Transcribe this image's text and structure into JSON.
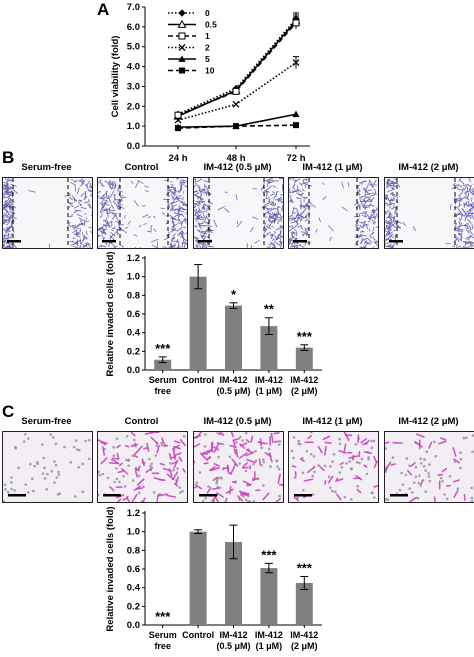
{
  "panels": {
    "a": "A",
    "b": "B",
    "c": "C"
  },
  "panel_b": {
    "images": [
      "Serum-free",
      "Control",
      "IM-412 (0.5 μM)",
      "IM-412 (1 μM)",
      "IM-412 (2 μM)"
    ]
  },
  "panel_c": {
    "images": [
      "Serum-free",
      "Control",
      "IM-412 (0.5 μM)",
      "IM-412 (1 μM)",
      "IM-412 (2 μM)"
    ]
  },
  "colors": {
    "bar": "#808080",
    "wound_cells": "#5b5ba8",
    "transwell_cells": "#c93bbd",
    "transwell_bg": "#f2eef3"
  },
  "chart_data": [
    {
      "type": "line",
      "title": "",
      "xlabel": "",
      "ylabel": "Cell viability (fold)",
      "categories": [
        "24 h",
        "48 h",
        "72 h"
      ],
      "ylim": [
        0,
        7
      ],
      "yticks": [
        "0.0",
        "1.0",
        "2.0",
        "3.0",
        "4.0",
        "5.0",
        "6.0",
        "7.0"
      ],
      "legend_position": "top-left",
      "series": [
        {
          "name": "0",
          "values": [
            1.6,
            2.9,
            6.4
          ],
          "marker": "diamond",
          "dash": "dotted"
        },
        {
          "name": "0.5",
          "values": [
            1.5,
            2.8,
            6.3
          ],
          "marker": "triangle-open",
          "dash": "solid"
        },
        {
          "name": "1",
          "values": [
            1.55,
            2.75,
            6.2
          ],
          "marker": "square-open",
          "dash": "dashed"
        },
        {
          "name": "2",
          "values": [
            1.3,
            2.1,
            4.2
          ],
          "marker": "x",
          "dash": "dotted"
        },
        {
          "name": "5",
          "values": [
            0.95,
            1.0,
            1.6
          ],
          "marker": "triangle",
          "dash": "solid"
        },
        {
          "name": "10",
          "values": [
            0.9,
            1.0,
            1.05
          ],
          "marker": "square",
          "dash": "dashed"
        }
      ]
    },
    {
      "type": "bar",
      "ylabel": "Relative invaded cells (fold)",
      "categories": [
        [
          "Serum",
          "free"
        ],
        [
          "Control"
        ],
        [
          "IM-412",
          "(0.5 μM)"
        ],
        [
          "IM-412",
          "(1 μM)"
        ],
        [
          "IM-412",
          "(2 μM)"
        ]
      ],
      "values": [
        0.11,
        1.0,
        0.69,
        0.47,
        0.24
      ],
      "errors": [
        0.03,
        0.13,
        0.03,
        0.09,
        0.03
      ],
      "significance": [
        "***",
        "",
        "*",
        "**",
        "***"
      ],
      "ylim": [
        0,
        1.2
      ],
      "yticks": [
        "0.0",
        "0.2",
        "0.4",
        "0.6",
        "0.8",
        "1.0",
        "1.2"
      ]
    },
    {
      "type": "bar",
      "ylabel": "Relative invaded cells (fold)",
      "categories": [
        [
          "Serum",
          "free"
        ],
        [
          "Control"
        ],
        [
          "IM-412",
          "(0.5 μM)"
        ],
        [
          "IM-412",
          "(1 μM)"
        ],
        [
          "IM-412",
          "(2 μM)"
        ]
      ],
      "values": [
        0.0,
        1.0,
        0.89,
        0.61,
        0.45
      ],
      "errors": [
        0.0,
        0.02,
        0.18,
        0.05,
        0.07
      ],
      "significance": [
        "***",
        "",
        "",
        "***",
        "***"
      ],
      "ylim": [
        0,
        1.2
      ],
      "yticks": [
        "0.0",
        "0.2",
        "0.4",
        "0.6",
        "0.8",
        "1.0",
        "1.2"
      ]
    }
  ]
}
